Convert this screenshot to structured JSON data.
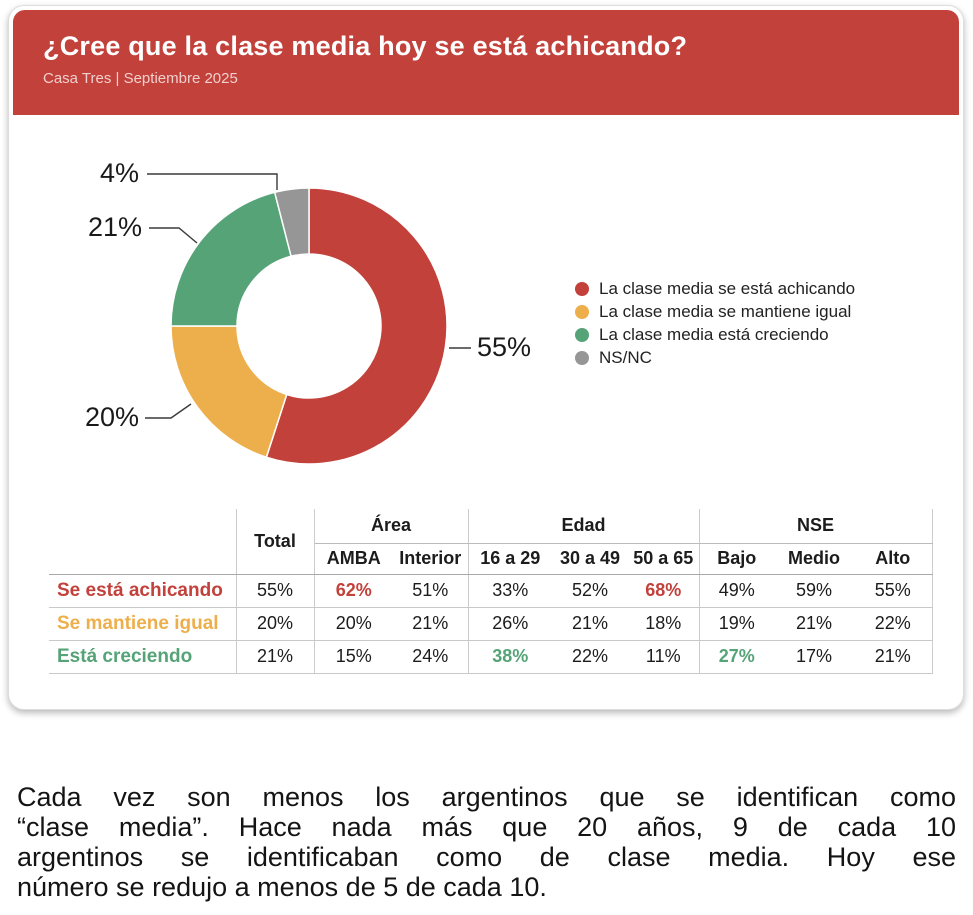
{
  "header": {
    "title": "¿Cree que la clase media hoy se está achicando?",
    "source": "Casa Tres | Septiembre 2025"
  },
  "palette": {
    "red": "#C2413B",
    "yellow": "#EDAF4B",
    "green": "#55A377",
    "gray": "#969696"
  },
  "chart_data": {
    "type": "pie",
    "donut": true,
    "title": "¿Cree que la clase media hoy se está achicando?",
    "legend_position": "right",
    "slices": [
      {
        "label": "La clase media se está achicando",
        "value": 55,
        "color": "red"
      },
      {
        "label": "La clase media se mantiene igual",
        "value": 20,
        "color": "yellow"
      },
      {
        "label": "La clase media está creciendo",
        "value": 21,
        "color": "green"
      },
      {
        "label": "NS/NC",
        "value": 4,
        "color": "gray"
      }
    ]
  },
  "table": {
    "total_label": "Total",
    "col_groups": [
      {
        "label": "Área",
        "span": 2
      },
      {
        "label": "Edad",
        "span": 3
      },
      {
        "label": "NSE",
        "span": 3
      }
    ],
    "sub_headers": [
      "AMBA",
      "Interior",
      "16 a 29",
      "30 a 49",
      "50 a 65",
      "Bajo",
      "Medio",
      "Alto"
    ],
    "rows": [
      {
        "label": "Se está achicando",
        "color": "red",
        "values": [
          "55%",
          "62%",
          "51%",
          "33%",
          "52%",
          "68%",
          "49%",
          "59%",
          "55%"
        ],
        "highlights": [
          1,
          5
        ]
      },
      {
        "label": "Se mantiene igual",
        "color": "yellow",
        "values": [
          "20%",
          "20%",
          "21%",
          "26%",
          "21%",
          "18%",
          "19%",
          "21%",
          "22%"
        ],
        "highlights": []
      },
      {
        "label": "Está creciendo",
        "color": "green",
        "values": [
          "21%",
          "15%",
          "24%",
          "38%",
          "22%",
          "11%",
          "27%",
          "17%",
          "21%"
        ],
        "highlights": [
          3,
          6
        ]
      }
    ]
  },
  "summary": {
    "lines": [
      "Cada vez son menos los argentinos que se identifican como",
      "“clase media”. Hace nada más que 20 años, 9 de cada 10",
      "argentinos se identificaban como de clase media. Hoy ese",
      "número se redujo a menos de 5 de cada 10."
    ]
  }
}
